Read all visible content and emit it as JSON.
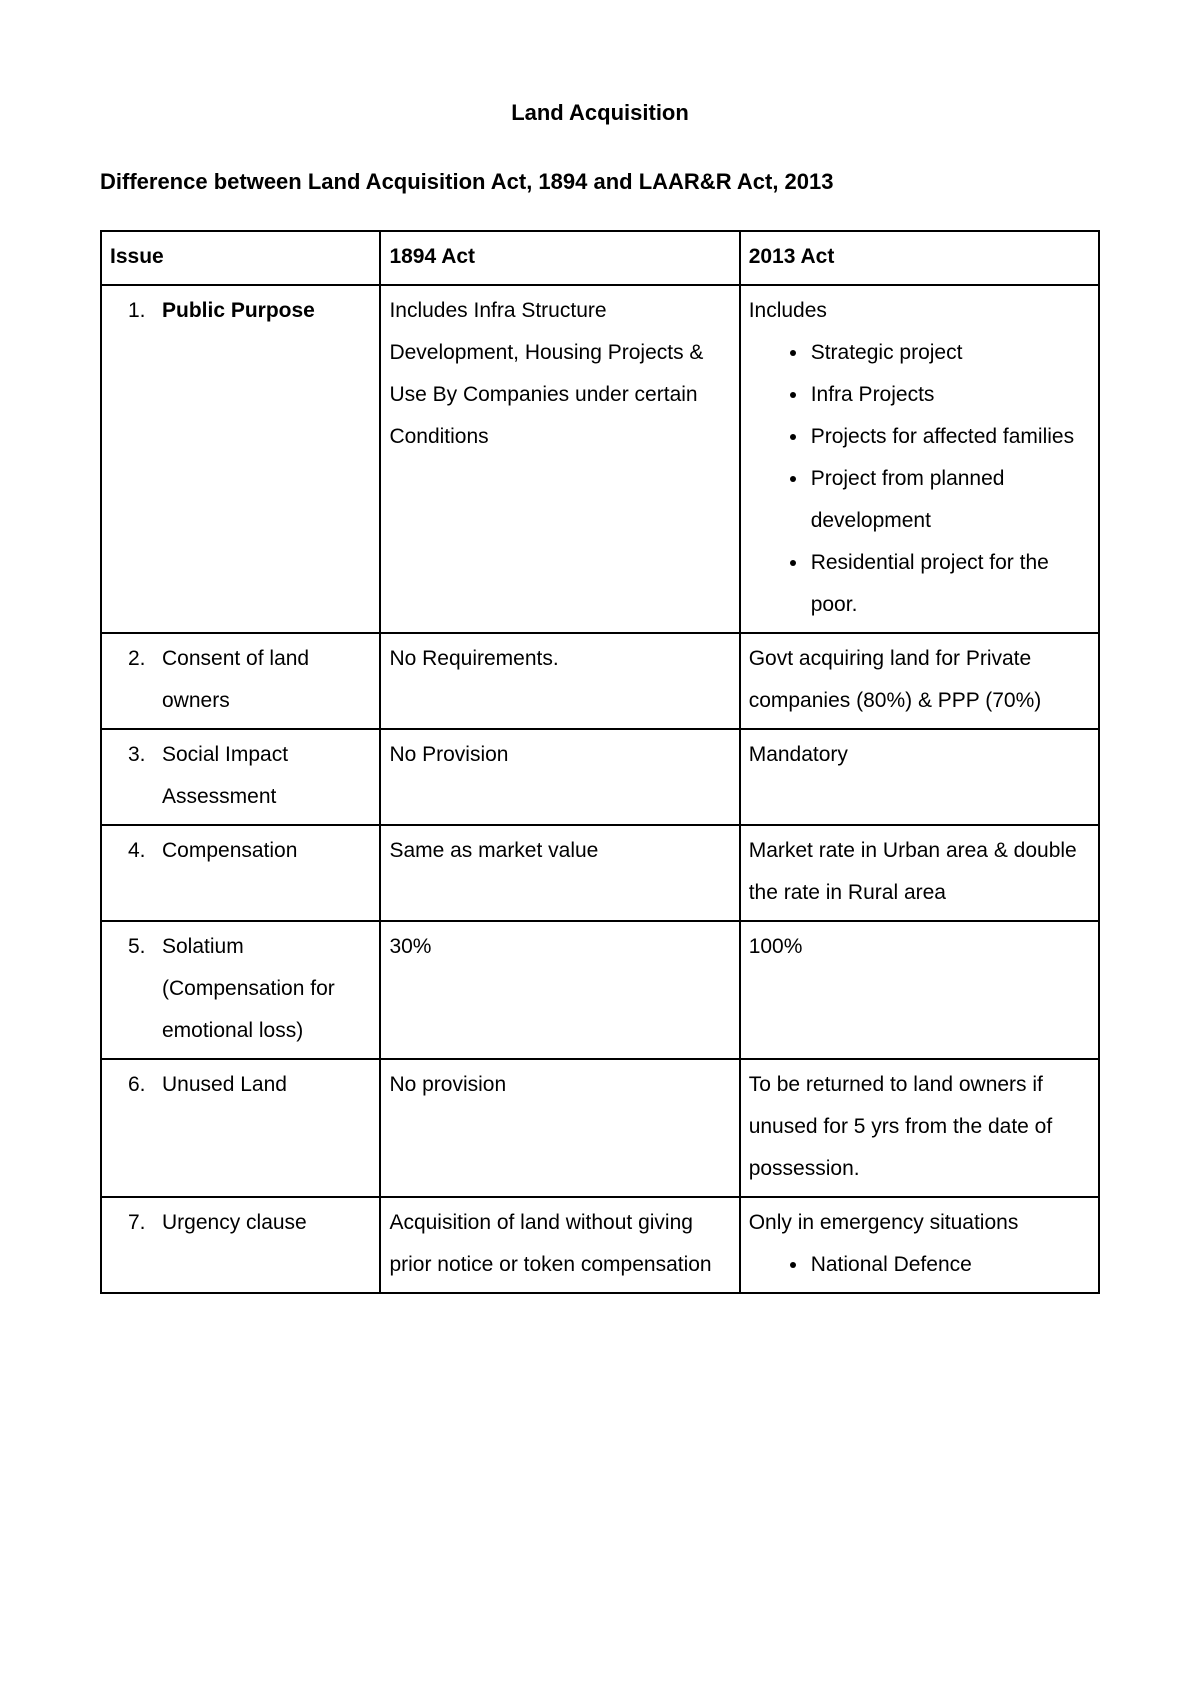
{
  "title": "Land Acquisition",
  "subtitle": "Difference between Land Acquisition Act, 1894 and LAAR&R Act, 2013",
  "columns": {
    "issue": "Issue",
    "act1894": "1894 Act",
    "act2013": "2013 Act"
  },
  "rows": [
    {
      "num": "1.",
      "issue": "Public Purpose",
      "issue_bold": true,
      "act1894": "Includes Infra Structure Development, Housing Projects & Use By Companies under certain Conditions",
      "act2013_lead": "Includes",
      "act2013_bullets": [
        "Strategic project",
        "Infra Projects",
        "Projects for affected families",
        "Project from planned development",
        "Residential project for the poor."
      ]
    },
    {
      "num": "2.",
      "issue": "Consent of land owners",
      "act1894": "No Requirements.",
      "act2013": "Govt acquiring land for Private companies (80%) & PPP (70%)"
    },
    {
      "num": "3.",
      "issue": "Social Impact Assessment",
      "act1894": "No Provision",
      "act2013": "Mandatory"
    },
    {
      "num": "4.",
      "issue": "Compensation",
      "act1894": "Same as market value",
      "act2013": "Market rate in Urban area & double the rate in Rural area"
    },
    {
      "num": "5.",
      "issue": "Solatium (Compensation for emotional loss)",
      "act1894": "30%",
      "act2013": "100%"
    },
    {
      "num": "6.",
      "issue": "Unused Land",
      "act1894": "No provision",
      "act2013": "To be returned to land owners if unused for 5 yrs from the date of possession."
    },
    {
      "num": "7.",
      "issue": "Urgency clause",
      "act1894": "Acquisition of land without giving prior notice or token compensation",
      "act2013_lead": "Only in emergency situations",
      "act2013_bullets": [
        "National Defence"
      ]
    }
  ]
}
